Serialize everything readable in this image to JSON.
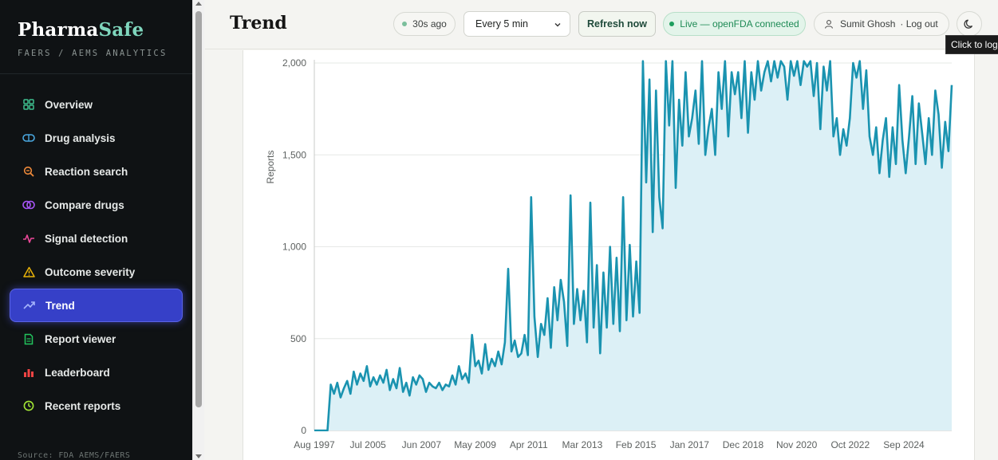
{
  "brand": {
    "name_main": "Pharma",
    "name_accent": "Safe",
    "subtitle": "FAERS / AEMS ANALYTICS"
  },
  "sidebar": {
    "items": [
      {
        "label": "Overview",
        "icon": "grid-icon",
        "color": "#3fbf8f"
      },
      {
        "label": "Drug analysis",
        "icon": "pill-icon",
        "color": "#4aa8e0"
      },
      {
        "label": "Reaction search",
        "icon": "search-icon",
        "color": "#f08a3a"
      },
      {
        "label": "Compare drugs",
        "icon": "overlap-circles-icon",
        "color": "#a855f7"
      },
      {
        "label": "Signal detection",
        "icon": "pulse-icon",
        "color": "#ec4899"
      },
      {
        "label": "Outcome severity",
        "icon": "warning-icon",
        "color": "#eab308"
      },
      {
        "label": "Trend",
        "icon": "trend-up-icon",
        "color": "#a5b4fc",
        "active": true
      },
      {
        "label": "Report viewer",
        "icon": "document-icon",
        "color": "#22c55e"
      },
      {
        "label": "Leaderboard",
        "icon": "bar-chart-icon",
        "color": "#ef4444"
      },
      {
        "label": "Recent reports",
        "icon": "clock-icon",
        "color": "#a3e635"
      }
    ],
    "footer": "Source: FDA AEMS/FAERS"
  },
  "header": {
    "title": "Trend",
    "last_updated": "30s ago",
    "interval": "Every 5 min",
    "refresh_label": "Refresh now",
    "live_status": "Live — openFDA connected",
    "user_name": "Sumit Ghosh",
    "logout_label": "· Log out",
    "tooltip": "Click to log"
  },
  "colors": {
    "line": "#1a93b0",
    "area": "#dcf0f6",
    "active_nav": "#3640c8",
    "live_green": "#1e8a55"
  },
  "chart_data": {
    "type": "area",
    "ylabel": "Reports",
    "ylim": [
      0,
      2000
    ],
    "yticks": [
      "0",
      "500",
      "1,000",
      "1,500",
      "2,000"
    ],
    "xticks": [
      "Aug 1997",
      "Jul 2005",
      "Jun 2007",
      "May 2009",
      "Apr 2011",
      "Mar 2013",
      "Feb 2015",
      "Jan 2017",
      "Dec 2018",
      "Nov 2020",
      "Oct 2022",
      "Sep 2024"
    ],
    "grid": true,
    "series": [
      {
        "values": [
          0,
          0,
          0,
          0,
          0,
          250,
          200,
          260,
          180,
          230,
          270,
          200,
          320,
          250,
          310,
          270,
          350,
          240,
          290,
          250,
          300,
          260,
          330,
          220,
          280,
          230,
          340,
          210,
          260,
          190,
          290,
          250,
          300,
          280,
          210,
          260,
          240,
          230,
          260,
          220,
          250,
          240,
          300,
          250,
          350,
          280,
          310,
          260,
          520,
          350,
          380,
          310,
          470,
          330,
          390,
          350,
          430,
          360,
          480,
          880,
          430,
          490,
          400,
          420,
          520,
          410,
          1270,
          620,
          400,
          580,
          520,
          720,
          450,
          780,
          600,
          820,
          700,
          460,
          1280,
          580,
          770,
          600,
          760,
          480,
          1240,
          560,
          900,
          420,
          860,
          560,
          1000,
          580,
          940,
          540,
          1270,
          600,
          1010,
          620,
          920,
          640,
          2050,
          1350,
          1910,
          1080,
          1850,
          1270,
          1100,
          2050,
          1660,
          2050,
          1320,
          1800,
          1550,
          1950,
          1600,
          1700,
          1850,
          1560,
          2050,
          1500,
          1650,
          1750,
          1500,
          1950,
          1750,
          2050,
          1600,
          1950,
          1830,
          1950,
          1700,
          2050,
          1620,
          1950,
          1800,
          2050,
          1850,
          1950,
          2050,
          1900,
          2050,
          1920,
          2050,
          1980,
          1800,
          2050,
          1930,
          2050,
          1880,
          2050,
          1980,
          2050,
          1820,
          2000,
          1640,
          1980,
          1850,
          2050,
          1600,
          1700,
          1500,
          1640,
          1550,
          1700,
          2000,
          1920,
          2050,
          1750,
          1960,
          1600,
          1500,
          1650,
          1400,
          1580,
          1700,
          1380,
          1650,
          1450,
          1880,
          1580,
          1400,
          1600,
          1820,
          1450,
          1780,
          1620,
          1450,
          1700,
          1500,
          1850,
          1720,
          1430,
          1680,
          1520,
          1880
        ]
      }
    ]
  }
}
